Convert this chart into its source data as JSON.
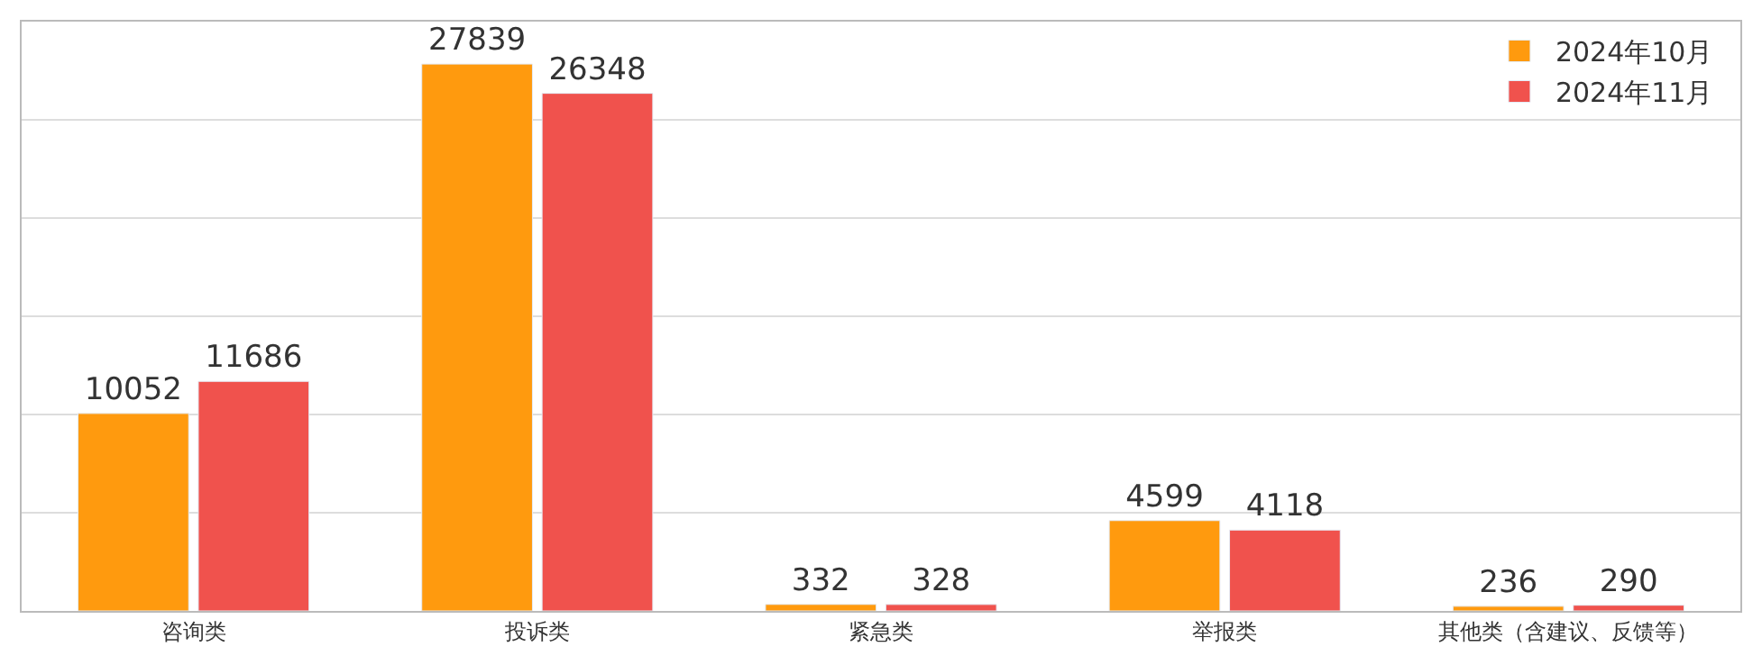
{
  "chart_data": {
    "type": "bar",
    "categories": [
      "咨询类",
      "投诉类",
      "紧急类",
      "举报类",
      "其他类（含建议、反馈等）"
    ],
    "series": [
      {
        "name": "2024年10月",
        "color": "#ff9a0e",
        "values": [
          10052,
          27839,
          332,
          4599,
          236
        ]
      },
      {
        "name": "2024年11月",
        "color": "#f0524d",
        "values": [
          11686,
          26348,
          328,
          4118,
          290
        ]
      }
    ],
    "ylim": [
      0,
      30000
    ],
    "yticks": [
      {
        "value": 0,
        "label": null
      },
      {
        "value": 5000,
        "label": null
      },
      {
        "value": 10000,
        "label": null
      },
      {
        "value": 15000,
        "label": null
      },
      {
        "value": 20000,
        "label": null
      },
      {
        "value": 25000,
        "label": null
      },
      {
        "value": 30000,
        "label": null
      }
    ],
    "tick_labels": "x",
    "grid": "y",
    "legend": "top right",
    "data_labels": true
  }
}
